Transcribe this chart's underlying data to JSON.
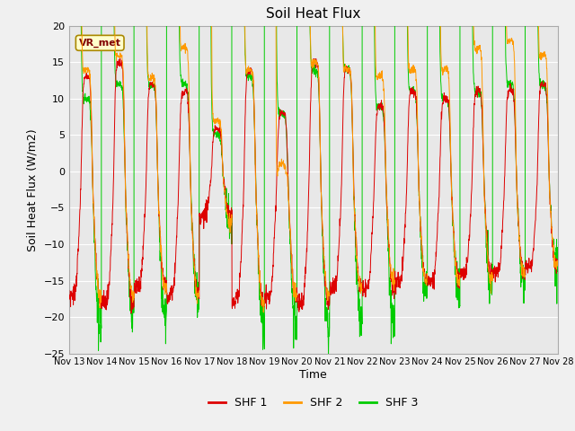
{
  "title": "Soil Heat Flux",
  "ylabel": "Soil Heat Flux (W/m2)",
  "xlabel": "Time",
  "ylim": [
    -25,
    20
  ],
  "yticks": [
    -25,
    -20,
    -15,
    -10,
    -5,
    0,
    5,
    10,
    15,
    20
  ],
  "xtick_labels": [
    "Nov 13",
    "Nov 14",
    "Nov 15",
    "Nov 16",
    "Nov 17",
    "Nov 18",
    "Nov 19",
    "Nov 20",
    "Nov 21",
    "Nov 22",
    "Nov 23",
    "Nov 24",
    "Nov 25",
    "Nov 26",
    "Nov 27",
    "Nov 28"
  ],
  "colors": {
    "SHF1": "#dd0000",
    "SHF2": "#ff9900",
    "SHF3": "#00cc00"
  },
  "legend_label1": "SHF 1",
  "legend_label2": "SHF 2",
  "legend_label3": "SHF 3",
  "annotation_text": "VR_met",
  "fig_bg": "#f0f0f0",
  "ax_bg": "#e8e8e8",
  "title_fontsize": 11,
  "axis_fontsize": 9,
  "tick_fontsize": 8
}
